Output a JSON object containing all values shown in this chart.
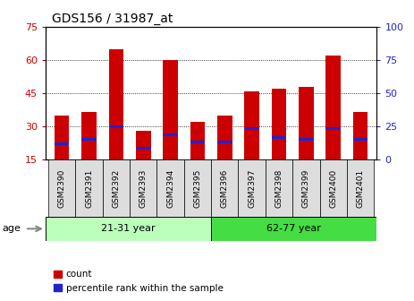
{
  "title": "GDS156 / 31987_at",
  "samples": [
    "GSM2390",
    "GSM2391",
    "GSM2392",
    "GSM2393",
    "GSM2394",
    "GSM2395",
    "GSM2396",
    "GSM2397",
    "GSM2398",
    "GSM2399",
    "GSM2400",
    "GSM2401"
  ],
  "count_values": [
    35,
    36.5,
    65,
    28,
    60,
    32,
    35,
    46,
    47,
    48,
    62,
    36.5
  ],
  "percentile_values": [
    22,
    24,
    30,
    20,
    26,
    23,
    23,
    29,
    25,
    24,
    29,
    24
  ],
  "bar_bottom": 15,
  "ylim": [
    15,
    75
  ],
  "y2lim": [
    0,
    100
  ],
  "yticks": [
    15,
    30,
    45,
    60,
    75
  ],
  "y2ticks": [
    0,
    25,
    50,
    75,
    100
  ],
  "red_color": "#cc0000",
  "blue_color": "#2222cc",
  "bg_color": "#ffffff",
  "tick_label_color_left": "#cc0000",
  "tick_label_color_right": "#2222cc",
  "group1_label": "21-31 year",
  "group2_label": "62-77 year",
  "group1_samples": 6,
  "group2_samples": 6,
  "age_label": "age",
  "legend_count": "count",
  "legend_pct": "percentile rank within the sample",
  "group1_color": "#bbffbb",
  "group2_color": "#44dd44",
  "bar_width": 0.55,
  "blue_bar_height": 1.2,
  "cell_color": "#dddddd"
}
